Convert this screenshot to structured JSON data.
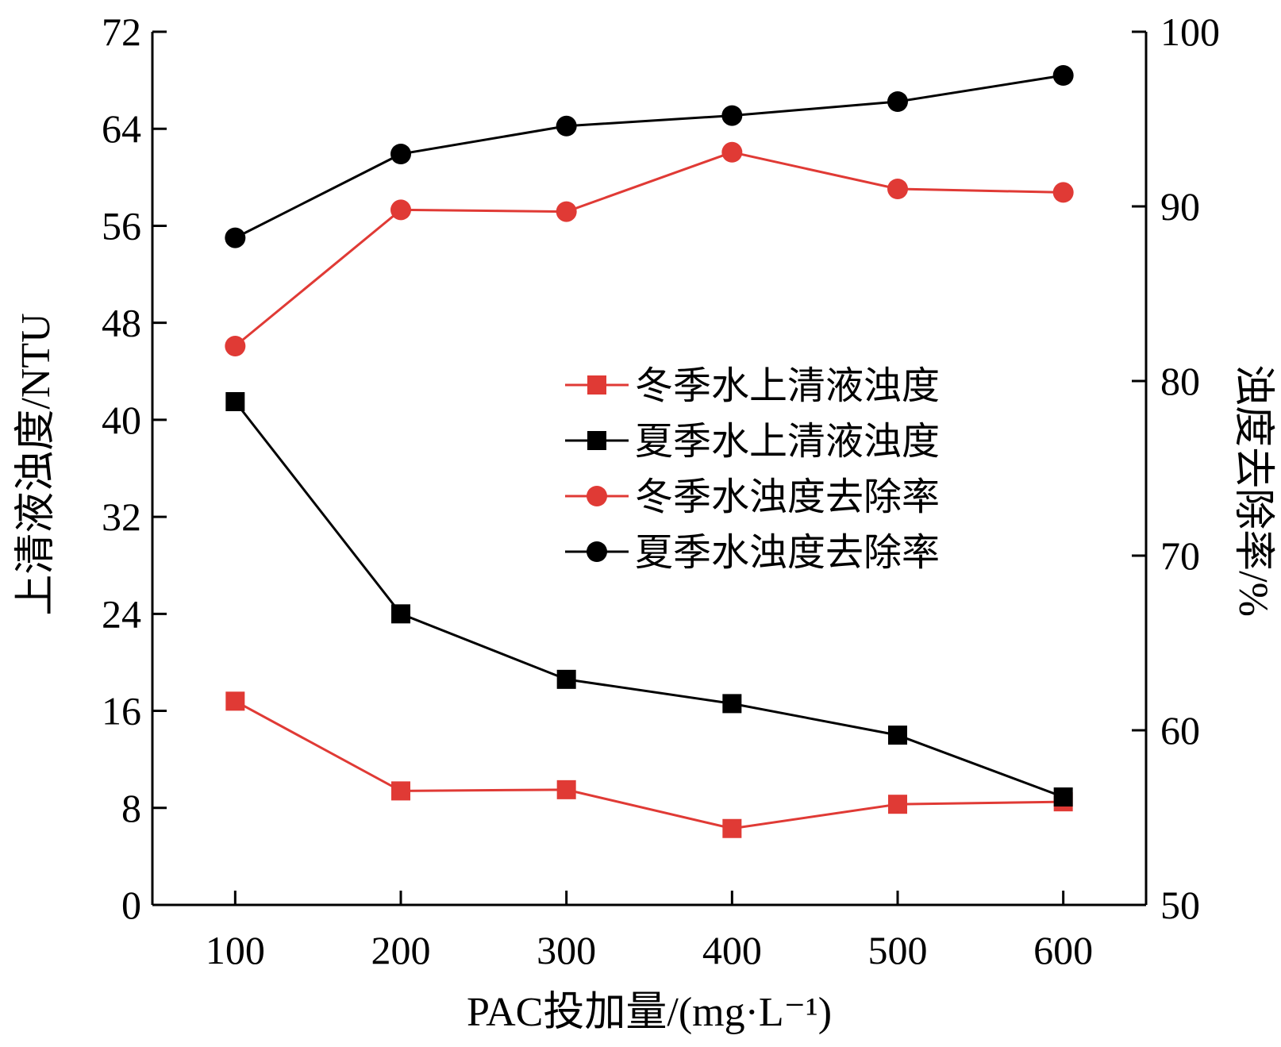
{
  "chart_data": {
    "type": "line",
    "x": [
      100,
      200,
      300,
      400,
      500,
      600
    ],
    "xlabel": "PAC投加量/(mg·L⁻¹)",
    "ylabel_left": "上清液浊度/NTU",
    "ylabel_right": "浊度去除率/%",
    "xlim": [
      50,
      650
    ],
    "ylim_left": [
      0,
      72
    ],
    "ylim_right": [
      50,
      100
    ],
    "xticks": [
      "100",
      "200",
      "300",
      "400",
      "500",
      "600"
    ],
    "yticks_left": [
      "0",
      "8",
      "16",
      "24",
      "32",
      "40",
      "48",
      "56",
      "64",
      "72"
    ],
    "yticks_right": [
      "50",
      "60",
      "70",
      "80",
      "90",
      "100"
    ],
    "grid": false,
    "legend_position": "center-right",
    "series": [
      {
        "name": "冬季水上清液浊度",
        "axis": "left",
        "marker": "square",
        "color": "#e03a35",
        "values": [
          16.8,
          9.4,
          9.5,
          6.3,
          8.3,
          8.5
        ]
      },
      {
        "name": "夏季水上清液浊度",
        "axis": "left",
        "marker": "square",
        "color": "#000000",
        "values": [
          41.5,
          24.0,
          18.6,
          16.6,
          14.0,
          8.9
        ]
      },
      {
        "name": "冬季水浊度去除率",
        "axis": "right",
        "marker": "circle",
        "color": "#e03a35",
        "values": [
          82.0,
          89.8,
          89.7,
          93.1,
          91.0,
          90.8
        ]
      },
      {
        "name": "夏季水浊度去除率",
        "axis": "right",
        "marker": "circle",
        "color": "#000000",
        "values": [
          88.2,
          93.0,
          94.6,
          95.2,
          96.0,
          97.5
        ]
      }
    ]
  }
}
